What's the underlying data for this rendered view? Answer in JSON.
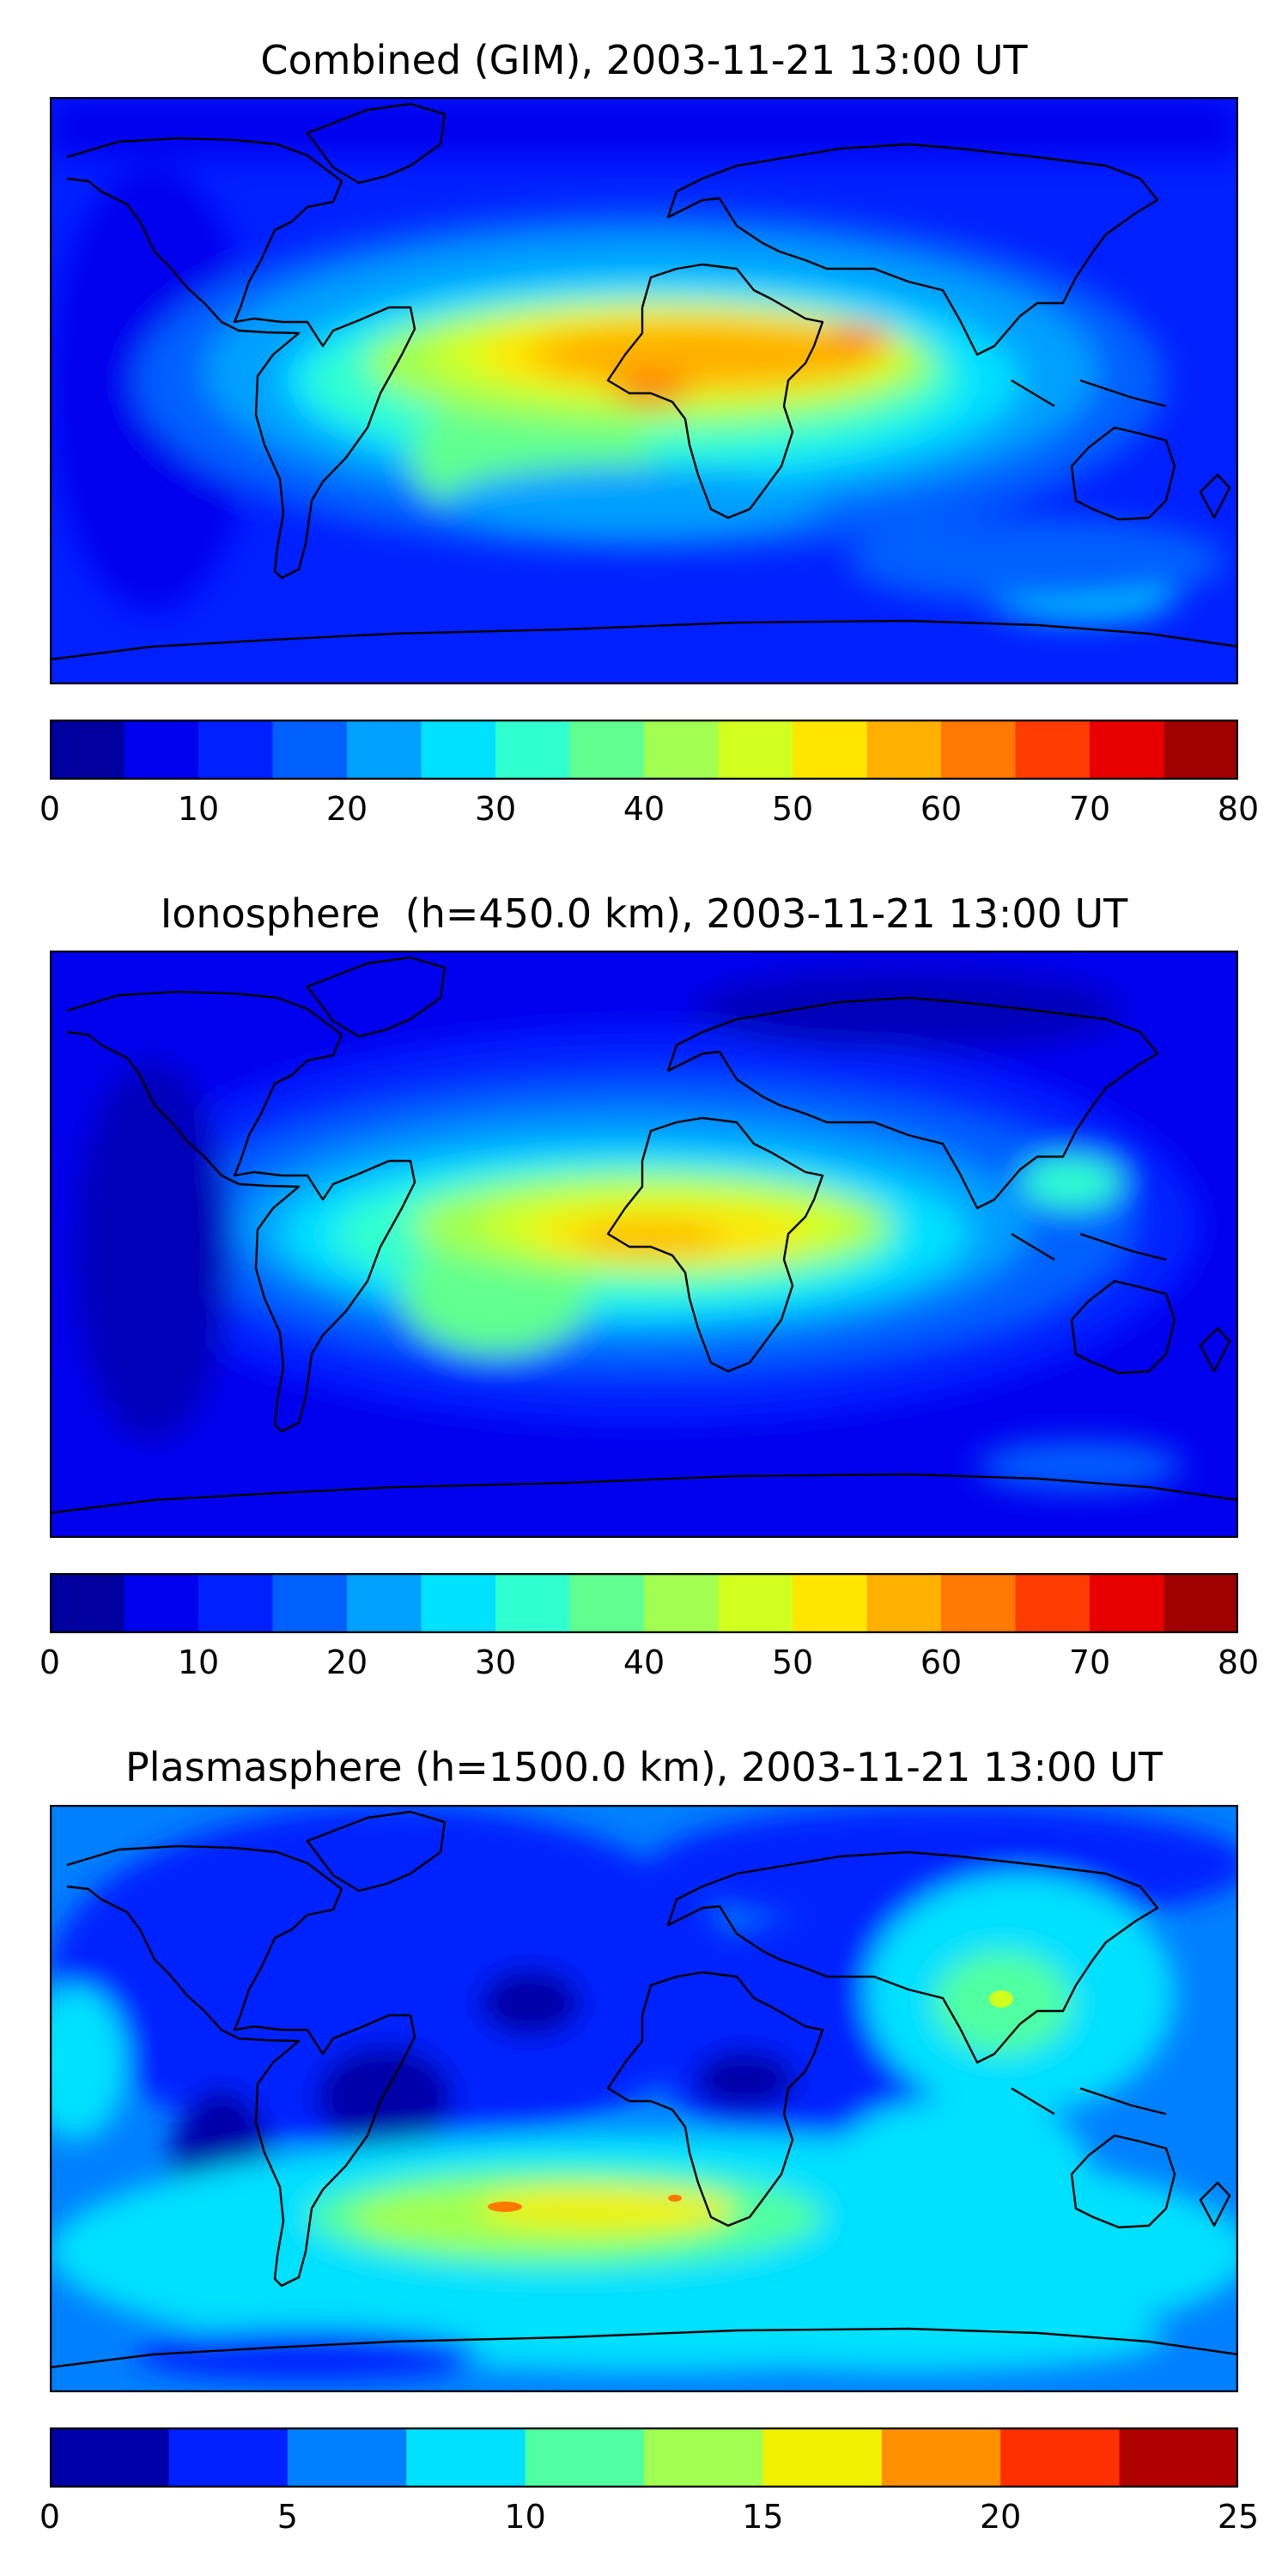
{
  "chart_data": [
    {
      "type": "heatmap",
      "title": "Combined (GIM), 2003-11-21 13:00 UT",
      "colorbar": {
        "ticks": [
          "0",
          "10",
          "20",
          "30",
          "40",
          "50",
          "60",
          "70",
          "80"
        ],
        "range": [
          0,
          80
        ],
        "levels": [
          0,
          5,
          10,
          15,
          20,
          25,
          30,
          35,
          40,
          45,
          50,
          55,
          60,
          65,
          70,
          75,
          80
        ]
      },
      "colormap": [
        "#00009f",
        "#0000ee",
        "#0020ff",
        "#0060ff",
        "#00a0ff",
        "#00e0ff",
        "#30ffd0",
        "#60ff90",
        "#a0ff50",
        "#d0ff20",
        "#ffe600",
        "#ffb000",
        "#ff7800",
        "#ff3c00",
        "#e80000",
        "#a00000"
      ],
      "features": [
        {
          "level": 55,
          "note": "maximum over Atlantic equator / northern Africa"
        },
        {
          "level": 40,
          "note": "southern South America secondary maximum"
        }
      ]
    },
    {
      "type": "heatmap",
      "title": "Ionosphere  (h=450.0 km), 2003-11-21 13:00 UT",
      "colorbar": {
        "ticks": [
          "0",
          "10",
          "20",
          "30",
          "40",
          "50",
          "60",
          "70",
          "80"
        ],
        "range": [
          0,
          80
        ],
        "levels": [
          0,
          5,
          10,
          15,
          20,
          25,
          30,
          35,
          40,
          45,
          50,
          55,
          60,
          65,
          70,
          75,
          80
        ]
      },
      "colormap": [
        "#00009f",
        "#0000ee",
        "#0020ff",
        "#0060ff",
        "#00a0ff",
        "#00e0ff",
        "#30ffd0",
        "#60ff90",
        "#a0ff50",
        "#d0ff20",
        "#ffe600",
        "#ffb000",
        "#ff7800",
        "#ff3c00",
        "#e80000",
        "#a00000"
      ]
    },
    {
      "type": "heatmap",
      "title": "Plasmasphere (h=1500.0 km), 2003-11-21 13:00 UT",
      "colorbar": {
        "ticks": [
          "0",
          "5",
          "10",
          "15",
          "20",
          "25"
        ],
        "range": [
          0,
          25
        ],
        "levels": [
          0,
          2.5,
          5,
          7.5,
          10,
          12.5,
          15,
          17.5,
          20,
          22.5,
          25
        ]
      },
      "colormap": [
        "#0000a8",
        "#0020ff",
        "#0080ff",
        "#00e0ff",
        "#50ffa0",
        "#a0ff50",
        "#f0f000",
        "#ff9000",
        "#ff3000",
        "#b00000"
      ]
    }
  ]
}
